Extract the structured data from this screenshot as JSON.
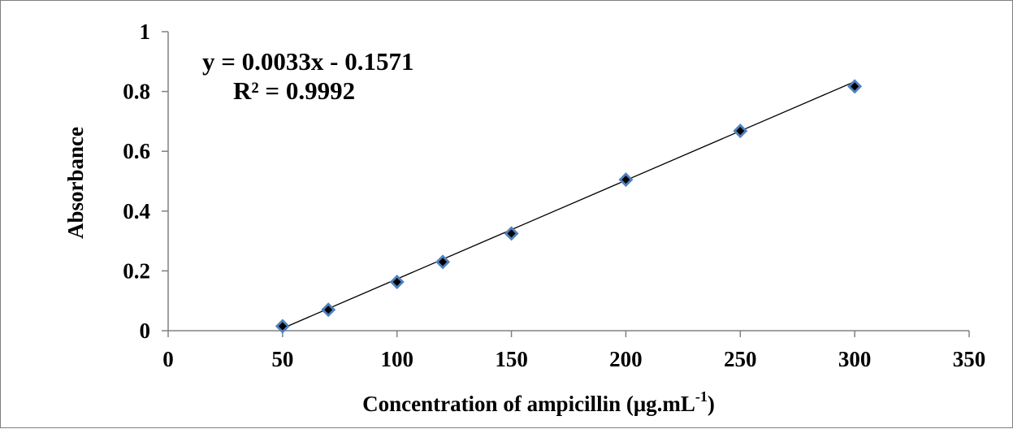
{
  "chart_data": {
    "type": "scatter",
    "title": "",
    "xlabel": "Concentration of ampicillin  (μg.mL",
    "xlabel_superscript": "-1",
    "xlabel_suffix": ")",
    "ylabel": "Absorbance",
    "xlim": [
      0,
      350
    ],
    "ylim": [
      0,
      1
    ],
    "x_ticks": [
      0,
      50,
      100,
      150,
      200,
      250,
      300,
      350
    ],
    "x_tick_labels": [
      "0",
      "50",
      "100",
      "150",
      "200",
      "250",
      "300",
      "350"
    ],
    "y_ticks": [
      0,
      0.2,
      0.4,
      0.6,
      0.8,
      1
    ],
    "y_tick_labels": [
      "0",
      "0.2",
      "0.4",
      "0.6",
      "0.8",
      "1"
    ],
    "grid": false,
    "legend": "none",
    "series": [
      {
        "x": [
          50,
          70,
          100,
          120,
          150,
          200,
          250,
          300
        ],
        "y": [
          0.015,
          0.07,
          0.163,
          0.23,
          0.325,
          0.505,
          0.668,
          0.817
        ],
        "marker": "diamond",
        "color": "#4f81bd",
        "marker_edge": "#000000"
      }
    ],
    "trendline": {
      "type": "linear",
      "slope": 0.0033,
      "intercept": -0.1571,
      "x_range": [
        50,
        300
      ],
      "color": "#000000"
    },
    "annotations": {
      "equation": "y = 0.0033x - 0.1571",
      "r_squared": "R² = 0.9992"
    }
  }
}
